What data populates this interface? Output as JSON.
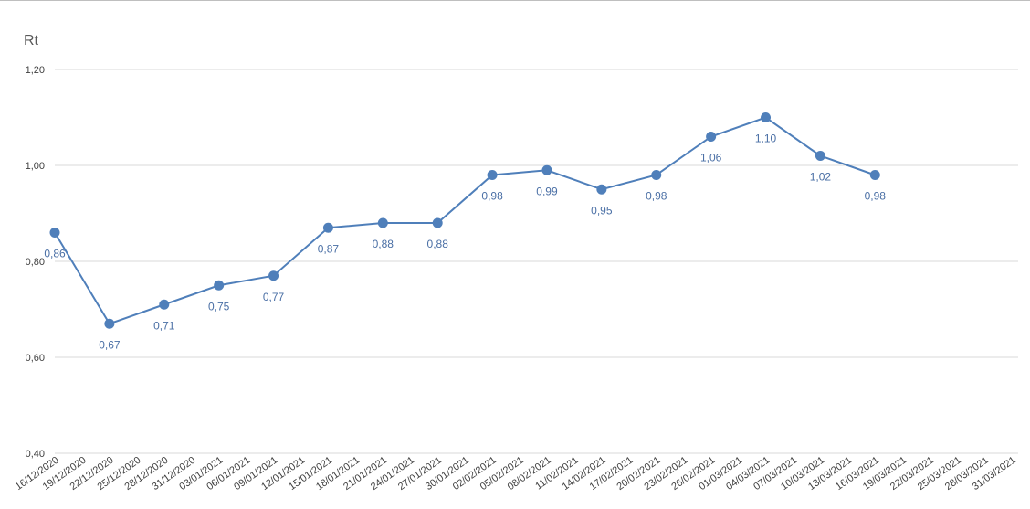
{
  "chart_data": {
    "type": "line",
    "title": "",
    "xlabel": "",
    "ylabel": "Rt",
    "ylim": [
      0.4,
      1.2
    ],
    "yticks": [
      "0,40",
      "0,60",
      "0,80",
      "1,00",
      "1,20"
    ],
    "grid": true,
    "legend": "none",
    "x": [
      "16/12/2020",
      "19/12/2020",
      "22/12/2020",
      "25/12/2020",
      "28/12/2020",
      "31/12/2020",
      "03/01/2021",
      "06/01/2021",
      "09/01/2021",
      "12/01/2021",
      "15/01/2021",
      "18/01/2021",
      "21/01/2021",
      "24/01/2021",
      "27/01/2021",
      "30/01/2021",
      "02/02/2021",
      "05/02/2021",
      "08/02/2021",
      "11/02/2021",
      "14/02/2021",
      "17/02/2021",
      "20/02/2021",
      "23/02/2021",
      "26/02/2021",
      "01/03/2021",
      "04/03/2021",
      "07/03/2021",
      "10/03/2021",
      "13/03/2021",
      "16/03/2021",
      "19/03/2021",
      "22/03/2021",
      "25/03/2021",
      "28/03/2021",
      "31/03/2021"
    ],
    "series": [
      {
        "points": [
          {
            "x": "16/12/2020",
            "y": 0.86,
            "label": "0,86"
          },
          {
            "x": "22/12/2020",
            "y": 0.67,
            "label": "0,67"
          },
          {
            "x": "28/12/2020",
            "y": 0.71,
            "label": "0,71"
          },
          {
            "x": "03/01/2021",
            "y": 0.75,
            "label": "0,75"
          },
          {
            "x": "09/01/2021",
            "y": 0.77,
            "label": "0,77"
          },
          {
            "x": "15/01/2021",
            "y": 0.87,
            "label": "0,87"
          },
          {
            "x": "21/01/2021",
            "y": 0.88,
            "label": "0,88"
          },
          {
            "x": "27/01/2021",
            "y": 0.88,
            "label": "0,88"
          },
          {
            "x": "02/02/2021",
            "y": 0.98,
            "label": "0,98"
          },
          {
            "x": "08/02/2021",
            "y": 0.99,
            "label": "0,99"
          },
          {
            "x": "14/02/2021",
            "y": 0.95,
            "label": "0,95"
          },
          {
            "x": "20/02/2021",
            "y": 0.98,
            "label": "0,98"
          },
          {
            "x": "26/02/2021",
            "y": 1.06,
            "label": "1,06"
          },
          {
            "x": "04/03/2021",
            "y": 1.1,
            "label": "1,10"
          },
          {
            "x": "10/03/2021",
            "y": 1.02,
            "label": "1,02"
          },
          {
            "x": "16/03/2021",
            "y": 0.98,
            "label": "0,98"
          }
        ]
      }
    ],
    "colors": {
      "line": "#4f7fba",
      "marker": "#4f7fba",
      "data_label": "#4a6fa5",
      "grid": "#d9d9d9"
    }
  }
}
